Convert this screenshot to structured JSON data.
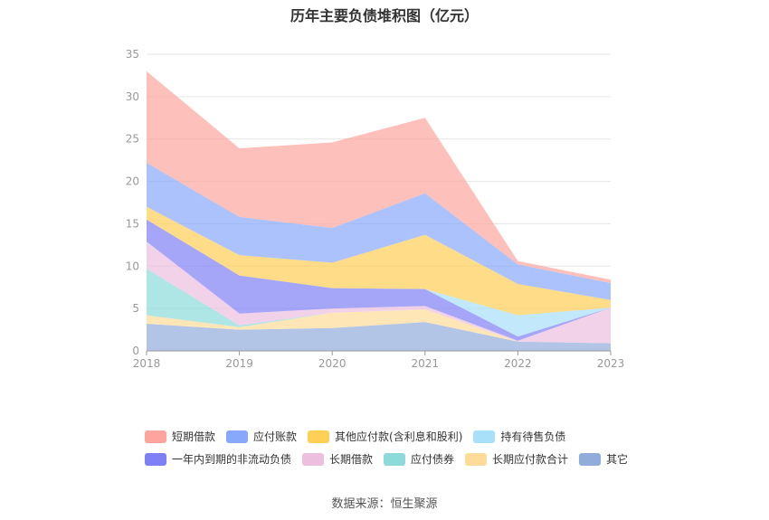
{
  "chart_data": {
    "type": "area",
    "stacked": true,
    "title": "历年主要负债堆积图（亿元）",
    "x": [
      "2018",
      "2019",
      "2020",
      "2021",
      "2022",
      "2023"
    ],
    "ylim": [
      0,
      35
    ],
    "yticks": [
      0,
      5,
      10,
      15,
      20,
      25,
      30,
      35
    ],
    "grid": true,
    "legend_position": "bottom",
    "series": [
      {
        "name": "其它",
        "color": "#91acdb",
        "values": [
          3.2,
          2.5,
          2.7,
          3.4,
          1.1,
          0.9
        ]
      },
      {
        "name": "长期应付款合计",
        "color": "#ffdb99",
        "values": [
          1.0,
          0.3,
          1.8,
          1.5,
          0.0,
          0.0
        ]
      },
      {
        "name": "应付债券",
        "color": "#8cdada",
        "values": [
          5.5,
          0.2,
          0.0,
          0.0,
          0.0,
          0.0
        ]
      },
      {
        "name": "长期借款",
        "color": "#ecbfdf",
        "values": [
          3.2,
          1.4,
          0.5,
          0.4,
          0.1,
          4.2
        ]
      },
      {
        "name": "一年内到期的非流动负债",
        "color": "#8080f6",
        "values": [
          2.6,
          4.5,
          2.4,
          2.0,
          0.5,
          0.0
        ]
      },
      {
        "name": "持有待售负债",
        "color": "#a8e0fa",
        "values": [
          0.0,
          0.0,
          0.0,
          0.0,
          2.5,
          0.0
        ]
      },
      {
        "name": "其他应付款(含利息和股利)",
        "color": "#ffcf56",
        "values": [
          1.5,
          2.4,
          3.0,
          6.4,
          3.7,
          0.9
        ]
      },
      {
        "name": "应付账款",
        "color": "#88a8fb",
        "values": [
          5.2,
          4.5,
          4.1,
          4.9,
          2.3,
          2.0
        ]
      },
      {
        "name": "短期借款",
        "color": "#fda59d",
        "values": [
          10.8,
          8.1,
          10.1,
          8.9,
          0.4,
          0.4
        ]
      }
    ],
    "legend_rows": [
      [
        "短期借款",
        "应付账款",
        "其他应付款(含利息和股利)",
        "持有待售负债"
      ],
      [
        "一年内到期的非流动负债",
        "长期借款",
        "应付债券",
        "长期应付款合计",
        "其它"
      ]
    ]
  },
  "source_text": "数据来源：恒生聚源"
}
